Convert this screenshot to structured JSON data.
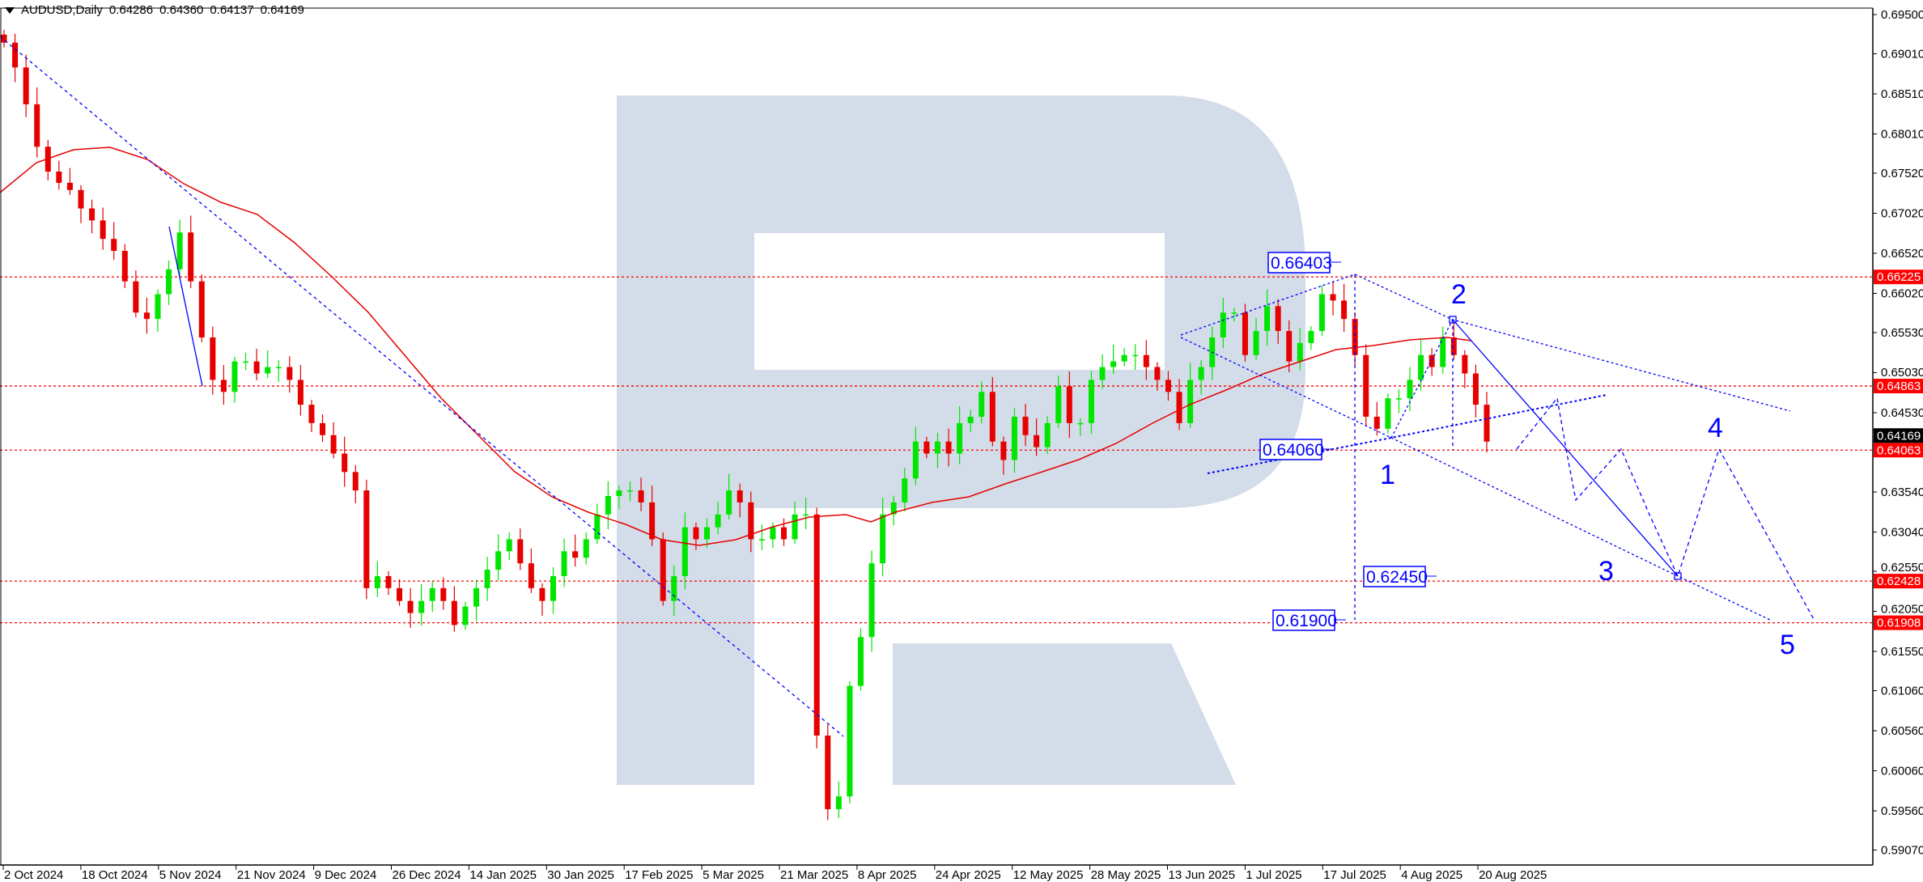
{
  "header": {
    "symbol": "AUDUSD,Daily",
    "open": "0.64286",
    "high": "0.64360",
    "low": "0.64137",
    "close": "0.64169"
  },
  "colors": {
    "bull": "#00e600",
    "bear": "#e60000",
    "ma": "#e60000",
    "levels": "#ff0000",
    "annotations": "#0000ff",
    "watermark": "#d3dde9"
  },
  "chart_data": {
    "type": "candlestick",
    "title": "AUDUSD,Daily",
    "ylim": [
      0.588,
      0.697
    ],
    "grid": false,
    "y_ticks": [
      "0.69500",
      "0.69010",
      "0.68510",
      "0.68010",
      "0.67520",
      "0.67020",
      "0.66520",
      "0.66020",
      "0.65530",
      "0.65030",
      "0.64530",
      "0.63540",
      "0.63040",
      "0.62550",
      "0.62050",
      "0.61550",
      "0.61060",
      "0.60560",
      "0.60060",
      "0.59560",
      "0.59070"
    ],
    "x_ticks": [
      "2 Oct 2024",
      "18 Oct 2024",
      "5 Nov 2024",
      "21 Nov 2024",
      "9 Dec 2024",
      "26 Dec 2024",
      "14 Jan 2025",
      "30 Jan 2025",
      "17 Feb 2025",
      "5 Mar 2025",
      "21 Mar 2025",
      "8 Apr 2025",
      "24 Apr 2025",
      "12 May 2025",
      "28 May 2025",
      "13 Jun 2025",
      "1 Jul 2025",
      "17 Jul 2025",
      "4 Aug 2025",
      "20 Aug 2025"
    ],
    "closes": [
      0.6915,
      0.6884,
      0.6838,
      0.6785,
      0.6754,
      0.674,
      0.6731,
      0.6708,
      0.6693,
      0.667,
      0.6655,
      0.6617,
      0.6578,
      0.657,
      0.6601,
      0.6632,
      0.6678,
      0.6617,
      0.6547,
      0.6494,
      0.6479,
      0.6517,
      0.6517,
      0.6502,
      0.651,
      0.651,
      0.6494,
      0.6463,
      0.644,
      0.6425,
      0.6402,
      0.6379,
      0.6356,
      0.6234,
      0.6249,
      0.6234,
      0.6218,
      0.6203,
      0.6218,
      0.6234,
      0.6218,
      0.6188,
      0.6211,
      0.6234,
      0.6257,
      0.628,
      0.6295,
      0.6265,
      0.6234,
      0.6218,
      0.6249,
      0.628,
      0.6272,
      0.6295,
      0.6326,
      0.6349,
      0.6356,
      0.6356,
      0.6341,
      0.6295,
      0.6218,
      0.6249,
      0.631,
      0.6295,
      0.631,
      0.6326,
      0.6356,
      0.6341,
      0.6295,
      0.6295,
      0.631,
      0.6295,
      0.6326,
      0.6326,
      0.605,
      0.5958,
      0.5974,
      0.6112,
      0.6173,
      0.6265,
      0.6326,
      0.6341,
      0.6371,
      0.6417,
      0.6402,
      0.6417,
      0.6402,
      0.644,
      0.6448,
      0.6479,
      0.6417,
      0.6394,
      0.6448,
      0.6425,
      0.641,
      0.644,
      0.6486,
      0.644,
      0.644,
      0.6494,
      0.651,
      0.6517,
      0.6525,
      0.6525,
      0.651,
      0.6494,
      0.6479,
      0.644,
      0.6494,
      0.651,
      0.6547,
      0.6578,
      0.6578,
      0.6525,
      0.6555,
      0.6586,
      0.6555,
      0.6517,
      0.654,
      0.6555,
      0.6601,
      0.6593,
      0.657,
      0.6525,
      0.6448,
      0.6433,
      0.6471,
      0.6471,
      0.6494,
      0.6525,
      0.651,
      0.6547,
      0.6525,
      0.6502,
      0.6463,
      0.64169
    ],
    "levels": [
      {
        "price": 0.66225,
        "label": "0.66225"
      },
      {
        "price": 0.64863,
        "label": "0.64863"
      },
      {
        "price": 0.64063,
        "label": "0.64063"
      },
      {
        "price": 0.62428,
        "label": "0.62428"
      },
      {
        "price": 0.61908,
        "label": "0.61908"
      }
    ],
    "current_price": {
      "price": 0.64169,
      "label": "0.64169"
    },
    "price_boxes": [
      "0.66403",
      "0.64060",
      "0.62450",
      "0.61900"
    ],
    "wave_labels": [
      "1",
      "2",
      "3",
      "4",
      "5"
    ]
  }
}
